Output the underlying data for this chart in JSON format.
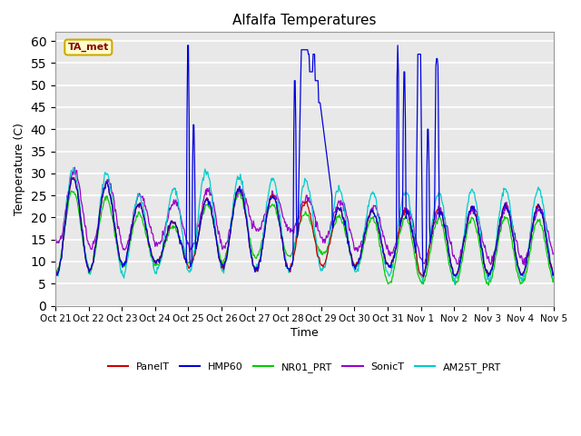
{
  "title": "Alfalfa Temperatures",
  "ylabel": "Temperature (C)",
  "xlabel": "Time",
  "ylim": [
    0,
    62
  ],
  "yticks": [
    0,
    5,
    10,
    15,
    20,
    25,
    30,
    35,
    40,
    45,
    50,
    55,
    60
  ],
  "annotation": "TA_met",
  "colors": {
    "PanelT": "#cc0000",
    "HMP60": "#0000dd",
    "NR01_PRT": "#00cc00",
    "SonicT": "#9900cc",
    "AM25T_PRT": "#00cccc"
  },
  "x_labels": [
    "Oct 21",
    "Oct 22",
    "Oct 23",
    "Oct 24",
    "Oct 25",
    "Oct 26",
    "Oct 27",
    "Oct 28",
    "Oct 29",
    "Oct 30",
    "Oct 31",
    "Nov 1",
    "Nov 2",
    "Nov 3",
    "Nov 4",
    "Nov 5"
  ],
  "n_days": 15,
  "figsize": [
    6.4,
    4.8
  ],
  "dpi": 100
}
